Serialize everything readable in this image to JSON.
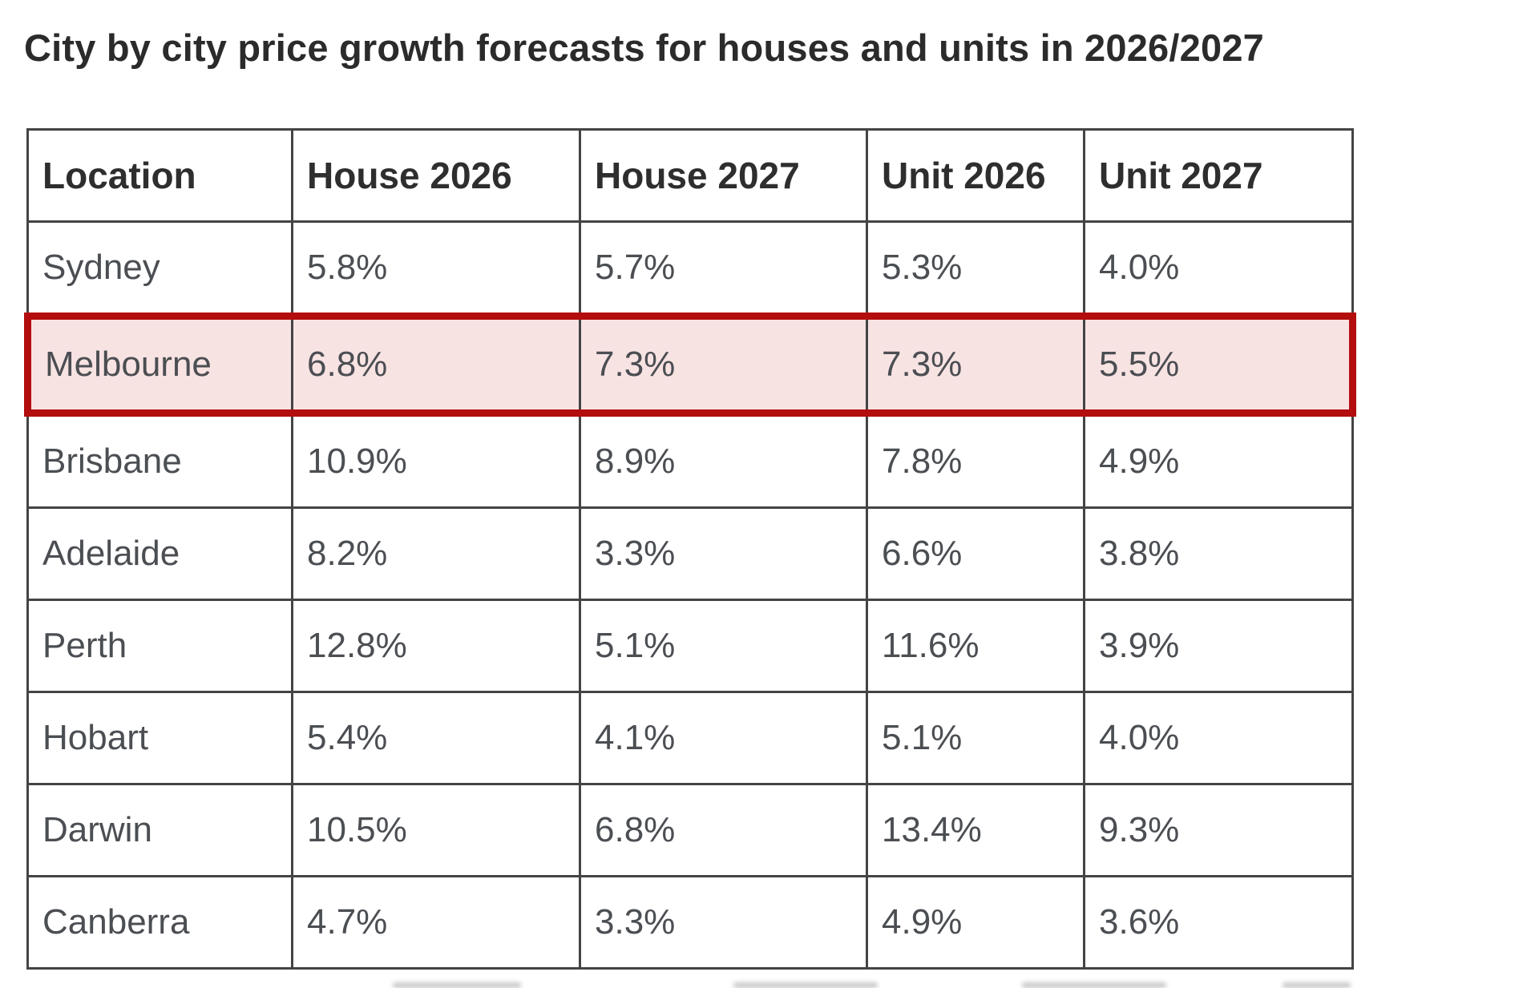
{
  "page": {
    "title": "City by city price growth forecasts for houses and units in 2026/2027"
  },
  "colors": {
    "highlight_row_background": "#f8e3e3",
    "highlight_row_border": "#b30d0d",
    "table_border": "#444444",
    "data_text": "#4b4e52",
    "heading_text": "#2b2b2b"
  },
  "table": {
    "columns": [
      "Location",
      "House 2026",
      "House 2027",
      "Unit 2026",
      "Unit 2027"
    ],
    "highlighted_location": "Melbourne",
    "rows": [
      {
        "location": "Sydney",
        "values": [
          "5.8%",
          "5.7%",
          "5.3%",
          "4.0%"
        ],
        "highlighted": false
      },
      {
        "location": "Melbourne",
        "values": [
          "6.8%",
          "7.3%",
          "7.3%",
          "5.5%"
        ],
        "highlighted": true
      },
      {
        "location": "Brisbane",
        "values": [
          "10.9%",
          "8.9%",
          "7.8%",
          "4.9%"
        ],
        "highlighted": false
      },
      {
        "location": "Adelaide",
        "values": [
          "8.2%",
          "3.3%",
          "6.6%",
          "3.8%"
        ],
        "highlighted": false
      },
      {
        "location": "Perth",
        "values": [
          "12.8%",
          "5.1%",
          "11.6%",
          "3.9%"
        ],
        "highlighted": false
      },
      {
        "location": "Hobart",
        "values": [
          "5.4%",
          "4.1%",
          "5.1%",
          "4.0%"
        ],
        "highlighted": false
      },
      {
        "location": "Darwin",
        "values": [
          "10.5%",
          "6.8%",
          "13.4%",
          "9.3%"
        ],
        "highlighted": false
      },
      {
        "location": "Canberra",
        "values": [
          "4.7%",
          "3.3%",
          "4.9%",
          "3.6%"
        ],
        "highlighted": false
      }
    ]
  },
  "chart_data": {
    "type": "table",
    "title": "City by city price growth forecasts for houses and units in 2026/2027",
    "columns": [
      "Location",
      "House 2026",
      "House 2027",
      "Unit 2026",
      "Unit 2027"
    ],
    "rows": [
      [
        "Sydney",
        5.8,
        5.7,
        5.3,
        4.0
      ],
      [
        "Melbourne",
        6.8,
        7.3,
        7.3,
        5.5
      ],
      [
        "Brisbane",
        10.9,
        8.9,
        7.8,
        4.9
      ],
      [
        "Adelaide",
        8.2,
        3.3,
        6.6,
        3.8
      ],
      [
        "Perth",
        12.8,
        5.1,
        11.6,
        3.9
      ],
      [
        "Hobart",
        5.4,
        4.1,
        5.1,
        4.0
      ],
      [
        "Darwin",
        10.5,
        6.8,
        13.4,
        9.3
      ],
      [
        "Canberra",
        4.7,
        3.3,
        4.9,
        3.6
      ]
    ],
    "units": "percent",
    "highlighted_row": "Melbourne"
  }
}
